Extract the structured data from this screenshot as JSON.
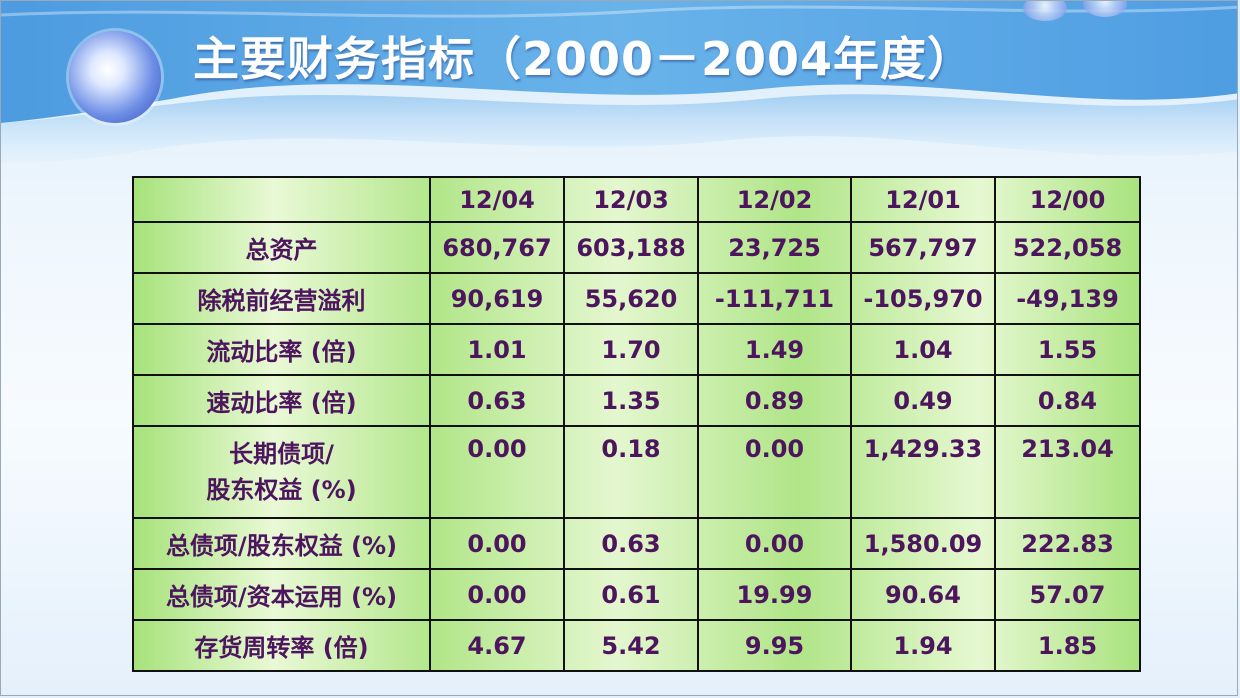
{
  "slide": {
    "title": "主要财务指标（2000－2004年度）"
  },
  "table": {
    "corner": "",
    "columns": [
      "12/04",
      "12/03",
      "12/02",
      "12/01",
      "12/00"
    ],
    "rows": [
      {
        "label_lines": [
          "总资产"
        ],
        "values": [
          "680,767",
          "603,188",
          "23,725",
          "567,797",
          "522,058"
        ]
      },
      {
        "label_lines": [
          "除税前经营溢利"
        ],
        "values": [
          "90,619",
          "55,620",
          "-111,711",
          "-105,970",
          "-49,139"
        ]
      },
      {
        "label_lines": [
          "流动比率 (倍)"
        ],
        "values": [
          "1.01",
          "1.70",
          "1.49",
          "1.04",
          "1.55"
        ]
      },
      {
        "label_lines": [
          "速动比率 (倍)"
        ],
        "values": [
          "0.63",
          "1.35",
          "0.89",
          "0.49",
          "0.84"
        ]
      },
      {
        "label_lines": [
          "长期债项/",
          "股东权益 (%)"
        ],
        "values": [
          "0.00",
          "0.18",
          "0.00",
          "1,429.33",
          "213.04"
        ]
      },
      {
        "label_lines": [
          "总债项/股东权益 (%)"
        ],
        "values": [
          "0.00",
          "0.63",
          "0.00",
          "1,580.09",
          "222.83"
        ]
      },
      {
        "label_lines": [
          "总债项/资本运用 (%)"
        ],
        "values": [
          "0.00",
          "0.61",
          "19.99",
          "90.64",
          "57.07"
        ]
      },
      {
        "label_lines": [
          "存货周转率 (倍)"
        ],
        "values": [
          "4.67",
          "5.42",
          "9.95",
          "1.94",
          "1.85"
        ]
      }
    ]
  },
  "colors": {
    "cell_text": "#4e155f",
    "cell_green": "#a6e27a",
    "title_text": "#ffffff",
    "banner_blue": "#5aa7e6"
  }
}
